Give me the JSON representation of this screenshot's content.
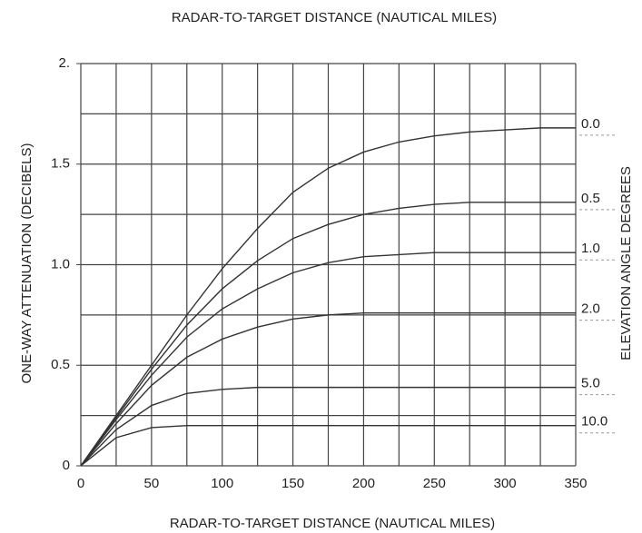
{
  "chart_data": {
    "type": "line",
    "title": "RADAR-TO-TARGET DISTANCE (NAUTICAL MILES)",
    "x_label": "RADAR-TO-TARGET DISTANCE (NAUTICAL MILES)",
    "y_label": "ONE-WAY ATTENUATION (DECIBELS)",
    "legend_title": "ELEVATION ANGLE DEGREES",
    "x": [
      0,
      25,
      50,
      75,
      100,
      125,
      150,
      175,
      200,
      225,
      250,
      275,
      300,
      325,
      350
    ],
    "series": [
      {
        "name": "0.0",
        "color": "#333333",
        "values": [
          0,
          0.25,
          0.5,
          0.75,
          0.98,
          1.18,
          1.36,
          1.48,
          1.56,
          1.61,
          1.64,
          1.66,
          1.67,
          1.68,
          1.68
        ]
      },
      {
        "name": "0.5",
        "color": "#333333",
        "values": [
          0,
          0.24,
          0.48,
          0.7,
          0.88,
          1.02,
          1.13,
          1.2,
          1.25,
          1.28,
          1.3,
          1.31,
          1.31,
          1.31,
          1.31
        ]
      },
      {
        "name": "1.0",
        "color": "#333333",
        "values": [
          0,
          0.23,
          0.45,
          0.64,
          0.78,
          0.88,
          0.96,
          1.01,
          1.04,
          1.05,
          1.06,
          1.06,
          1.06,
          1.06,
          1.06
        ]
      },
      {
        "name": "2.0",
        "color": "#333333",
        "values": [
          0,
          0.21,
          0.4,
          0.54,
          0.63,
          0.69,
          0.73,
          0.75,
          0.76,
          0.76,
          0.76,
          0.76,
          0.76,
          0.76,
          0.76
        ]
      },
      {
        "name": "5.0",
        "color": "#333333",
        "values": [
          0,
          0.18,
          0.3,
          0.36,
          0.38,
          0.39,
          0.39,
          0.39,
          0.39,
          0.39,
          0.39,
          0.39,
          0.39,
          0.39,
          0.39
        ]
      },
      {
        "name": "10.0",
        "color": "#333333",
        "values": [
          0,
          0.14,
          0.19,
          0.2,
          0.2,
          0.2,
          0.2,
          0.2,
          0.2,
          0.2,
          0.2,
          0.2,
          0.2,
          0.2,
          0.2
        ]
      }
    ],
    "xlim": [
      0,
      350
    ],
    "ylim": [
      0,
      2
    ],
    "xticks": [
      0,
      50,
      100,
      150,
      200,
      250,
      300,
      350
    ],
    "yticks": [
      0,
      0.5,
      {
        "value": 1,
        "label": "1.0"
      },
      1.5,
      {
        "value": 2,
        "label": "2."
      }
    ],
    "xgrid": [
      0,
      25,
      50,
      75,
      100,
      125,
      150,
      175,
      200,
      225,
      250,
      275,
      300,
      325,
      350
    ],
    "ygrid": [
      0,
      0.25,
      0.5,
      0.75,
      1,
      1.25,
      1.5,
      1.75,
      2
    ]
  }
}
